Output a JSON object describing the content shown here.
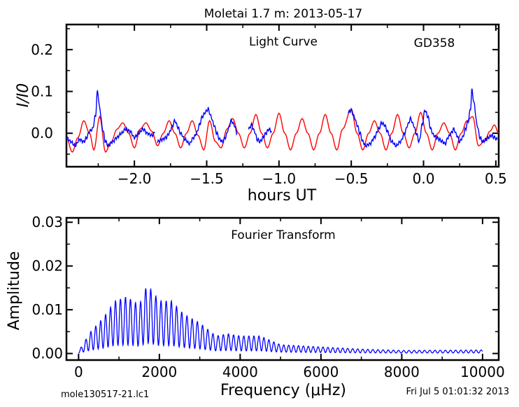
{
  "figure": {
    "title": "Moletai 1.7 m:  2013-05-17",
    "footer_left": "mole130517-21.lc1",
    "footer_right": "Fri Jul  5 01:01:32 2013"
  },
  "chart_data": [
    {
      "type": "line",
      "title": "Light Curve",
      "annotation": "GD358",
      "xlabel": "hours UT",
      "ylabel": "I/I0",
      "xlim": [
        -2.47,
        0.52
      ],
      "ylim": [
        -0.08,
        0.26
      ],
      "xticks": [
        -2.0,
        -1.5,
        -1.0,
        -0.5,
        0.0,
        0.5
      ],
      "xtick_labels": [
        "−2.0",
        "−1.5",
        "−1.0",
        "−0.5",
        "0.0",
        "0.5"
      ],
      "yticks": [
        0.0,
        0.1,
        0.2
      ],
      "ytick_labels": [
        "0.0",
        "0.1",
        "0.2"
      ],
      "grid": false,
      "series": [
        {
          "color": "#0000ff",
          "segments": [
            [
              [
                -2.47,
                -0.01
              ],
              [
                -2.44,
                -0.02
              ],
              [
                -2.41,
                -0.03
              ],
              [
                -2.38,
                -0.015
              ],
              [
                -2.35,
                -0.02
              ],
              [
                -2.33,
                -0.01
              ],
              [
                -2.31,
                0.005
              ],
              [
                -2.29,
                0.01
              ],
              [
                -2.27,
                0.04
              ],
              [
                -2.255,
                0.1
              ],
              [
                -2.24,
                0.06
              ],
              [
                -2.22,
                0.01
              ],
              [
                -2.2,
                -0.02
              ],
              [
                -2.18,
                -0.03
              ],
              [
                -2.15,
                -0.02
              ],
              [
                -2.12,
                -0.01
              ],
              [
                -2.09,
                0.0
              ],
              [
                -2.06,
                0.01
              ],
              [
                -2.03,
                0.005
              ],
              [
                -2.0,
                -0.01
              ],
              [
                -1.97,
                0.0
              ],
              [
                -1.94,
                0.01
              ],
              [
                -1.91,
                0.0
              ],
              [
                -1.88,
                -0.005
              ],
              [
                -1.86,
                0.0
              ]
            ],
            [
              [
                -1.84,
                -0.02
              ],
              [
                -1.81,
                -0.015
              ],
              [
                -1.78,
                -0.01
              ],
              [
                -1.76,
                0.0
              ],
              [
                -1.74,
                0.015
              ],
              [
                -1.72,
                0.03
              ],
              [
                -1.7,
                0.015
              ],
              [
                -1.68,
                0.0
              ],
              [
                -1.65,
                -0.015
              ],
              [
                -1.62,
                -0.025
              ],
              [
                -1.59,
                -0.01
              ],
              [
                -1.57,
                0.0
              ],
              [
                -1.55,
                0.02
              ],
              [
                -1.53,
                0.04
              ],
              [
                -1.51,
                0.05
              ],
              [
                -1.49,
                0.058
              ],
              [
                -1.47,
                0.04
              ],
              [
                -1.45,
                0.02
              ],
              [
                -1.43,
                0.0
              ],
              [
                -1.41,
                -0.015
              ],
              [
                -1.39,
                -0.02
              ],
              [
                -1.37,
                -0.01
              ],
              [
                -1.35,
                0.01
              ],
              [
                -1.33,
                0.03
              ],
              [
                -1.31,
                0.02
              ],
              [
                -1.29,
                0.0
              ]
            ],
            [
              [
                -1.21,
                0.01
              ],
              [
                -1.19,
                0.02
              ],
              [
                -1.17,
                0.005
              ],
              [
                -1.15,
                -0.015
              ],
              [
                -1.13,
                -0.02
              ],
              [
                -1.11,
                -0.01
              ],
              [
                -1.09,
                0.0
              ],
              [
                -1.07,
                0.01
              ],
              [
                -1.05,
                0.005
              ]
            ],
            [
              [
                -0.52,
                0.05
              ],
              [
                -0.5,
                0.055
              ],
              [
                -0.48,
                0.04
              ],
              [
                -0.46,
                0.02
              ],
              [
                -0.44,
                0.0
              ],
              [
                -0.42,
                -0.02
              ],
              [
                -0.4,
                -0.03
              ],
              [
                -0.37,
                -0.025
              ],
              [
                -0.34,
                -0.01
              ],
              [
                -0.31,
                0.01
              ],
              [
                -0.29,
                0.025
              ],
              [
                -0.27,
                0.02
              ],
              [
                -0.25,
                0.005
              ],
              [
                -0.22,
                -0.02
              ],
              [
                -0.19,
                -0.03
              ],
              [
                -0.16,
                -0.02
              ],
              [
                -0.13,
                0.0
              ],
              [
                -0.11,
                0.02
              ],
              [
                -0.09,
                0.035
              ],
              [
                -0.07,
                0.02
              ],
              [
                -0.05,
                0.0
              ],
              [
                -0.03,
                -0.02
              ],
              [
                -0.01,
                0.02
              ],
              [
                0.01,
                0.055
              ],
              [
                0.03,
                0.04
              ],
              [
                0.05,
                0.01
              ],
              [
                0.07,
                -0.005
              ],
              [
                0.09,
                -0.01
              ],
              [
                0.11,
                -0.015
              ],
              [
                0.13,
                -0.02
              ],
              [
                0.15,
                -0.025
              ],
              [
                0.17,
                -0.01
              ],
              [
                0.19,
                0.0
              ],
              [
                0.21,
                0.01
              ],
              [
                0.23,
                -0.005
              ],
              [
                0.25,
                -0.02
              ],
              [
                0.27,
                -0.01
              ],
              [
                0.29,
                0.01
              ],
              [
                0.31,
                0.03
              ],
              [
                0.325,
                0.06
              ],
              [
                0.335,
                0.103
              ],
              [
                0.35,
                0.07
              ],
              [
                0.37,
                0.02
              ],
              [
                0.39,
                -0.01
              ],
              [
                0.41,
                -0.02
              ],
              [
                0.43,
                -0.015
              ],
              [
                0.45,
                -0.01
              ],
              [
                0.47,
                -0.005
              ],
              [
                0.49,
                -0.01
              ],
              [
                0.51,
                -0.015
              ]
            ]
          ]
        },
        {
          "color": "#ff0000",
          "segments": [
            [
              [
                -2.47,
                -0.01
              ],
              [
                -2.43,
                -0.045
              ],
              [
                -2.39,
                -0.01
              ],
              [
                -2.35,
                0.03
              ],
              [
                -2.31,
                0.0
              ],
              [
                -2.28,
                -0.04
              ],
              [
                -2.24,
                0.04
              ],
              [
                -2.2,
                -0.045
              ],
              [
                -2.16,
                -0.02
              ],
              [
                -2.12,
                0.01
              ],
              [
                -2.08,
                0.025
              ],
              [
                -2.04,
                0.0
              ],
              [
                -2.0,
                -0.035
              ],
              [
                -1.96,
                0.01
              ],
              [
                -1.92,
                0.025
              ],
              [
                -1.88,
                0.005
              ],
              [
                -1.84,
                -0.03
              ],
              [
                -1.8,
                0.0
              ],
              [
                -1.76,
                0.03
              ],
              [
                -1.72,
                0.0
              ],
              [
                -1.68,
                -0.035
              ],
              [
                -1.64,
                0.0
              ],
              [
                -1.6,
                0.03
              ],
              [
                -1.56,
                -0.005
              ],
              [
                -1.52,
                -0.04
              ],
              [
                -1.48,
                0.03
              ],
              [
                -1.44,
                -0.02
              ],
              [
                -1.4,
                -0.035
              ],
              [
                -1.36,
                0.01
              ],
              [
                -1.32,
                0.035
              ],
              [
                -1.28,
                0.0
              ],
              [
                -1.24,
                -0.035
              ],
              [
                -1.2,
                0.0
              ],
              [
                -1.16,
                0.045
              ],
              [
                -1.12,
                0.0
              ],
              [
                -1.08,
                -0.035
              ],
              [
                -1.04,
                0.0
              ],
              [
                -1.0,
                0.048
              ],
              [
                -0.96,
                0.0
              ],
              [
                -0.92,
                -0.04
              ],
              [
                -0.88,
                0.0
              ],
              [
                -0.84,
                0.035
              ],
              [
                -0.8,
                0.0
              ],
              [
                -0.76,
                -0.04
              ],
              [
                -0.72,
                0.0
              ],
              [
                -0.68,
                0.045
              ],
              [
                -0.64,
                0.0
              ],
              [
                -0.6,
                -0.04
              ],
              [
                -0.56,
                0.01
              ],
              [
                -0.5,
                0.058
              ],
              [
                -0.46,
                0.0
              ],
              [
                -0.42,
                -0.04
              ],
              [
                -0.38,
                0.0
              ],
              [
                -0.34,
                0.03
              ],
              [
                -0.3,
                0.0
              ],
              [
                -0.26,
                -0.04
              ],
              [
                -0.22,
                0.0
              ],
              [
                -0.18,
                0.045
              ],
              [
                -0.14,
                0.0
              ],
              [
                -0.1,
                -0.035
              ],
              [
                -0.06,
                0.0
              ],
              [
                -0.02,
                0.05
              ],
              [
                0.02,
                0.0
              ],
              [
                0.06,
                -0.04
              ],
              [
                0.1,
                0.0
              ],
              [
                0.14,
                0.025
              ],
              [
                0.18,
                0.0
              ],
              [
                0.22,
                -0.04
              ],
              [
                0.26,
                0.0
              ],
              [
                0.3,
                0.03
              ],
              [
                0.34,
                0.04
              ],
              [
                0.38,
                -0.03
              ],
              [
                0.42,
                -0.02
              ],
              [
                0.46,
                0.005
              ],
              [
                0.49,
                0.02
              ],
              [
                0.52,
                0.0
              ]
            ]
          ]
        }
      ]
    },
    {
      "type": "line",
      "title": "Fourier Transform",
      "xlabel": "Frequency (μHz)",
      "ylabel": "Amplitude",
      "xlim": [
        -300,
        10400
      ],
      "ylim": [
        -0.0015,
        0.031
      ],
      "xticks": [
        0,
        2000,
        4000,
        6000,
        8000,
        10000
      ],
      "xtick_labels": [
        "0",
        "2000",
        "4000",
        "6000",
        "8000",
        "10000"
      ],
      "yticks": [
        0.0,
        0.01,
        0.02,
        0.03
      ],
      "ytick_labels": [
        "0.00",
        "0.01",
        "0.02",
        "0.03"
      ],
      "grid": false,
      "series": [
        {
          "color": "#0000ff",
          "envelope": [
            [
              0,
              0.0005
            ],
            [
              300,
              0.005
            ],
            [
              600,
              0.008
            ],
            [
              900,
              0.012
            ],
            [
              1200,
              0.013
            ],
            [
              1500,
              0.011
            ],
            [
              1700,
              0.0158
            ],
            [
              2000,
              0.012
            ],
            [
              2300,
              0.012
            ],
            [
              2600,
              0.009
            ],
            [
              3000,
              0.007
            ],
            [
              3400,
              0.004
            ],
            [
              3700,
              0.0045
            ],
            [
              4000,
              0.004
            ],
            [
              4500,
              0.004
            ],
            [
              5000,
              0.002
            ],
            [
              6000,
              0.0015
            ],
            [
              7000,
              0.001
            ],
            [
              8000,
              0.0007
            ],
            [
              10000,
              0.0008
            ]
          ]
        }
      ]
    }
  ]
}
